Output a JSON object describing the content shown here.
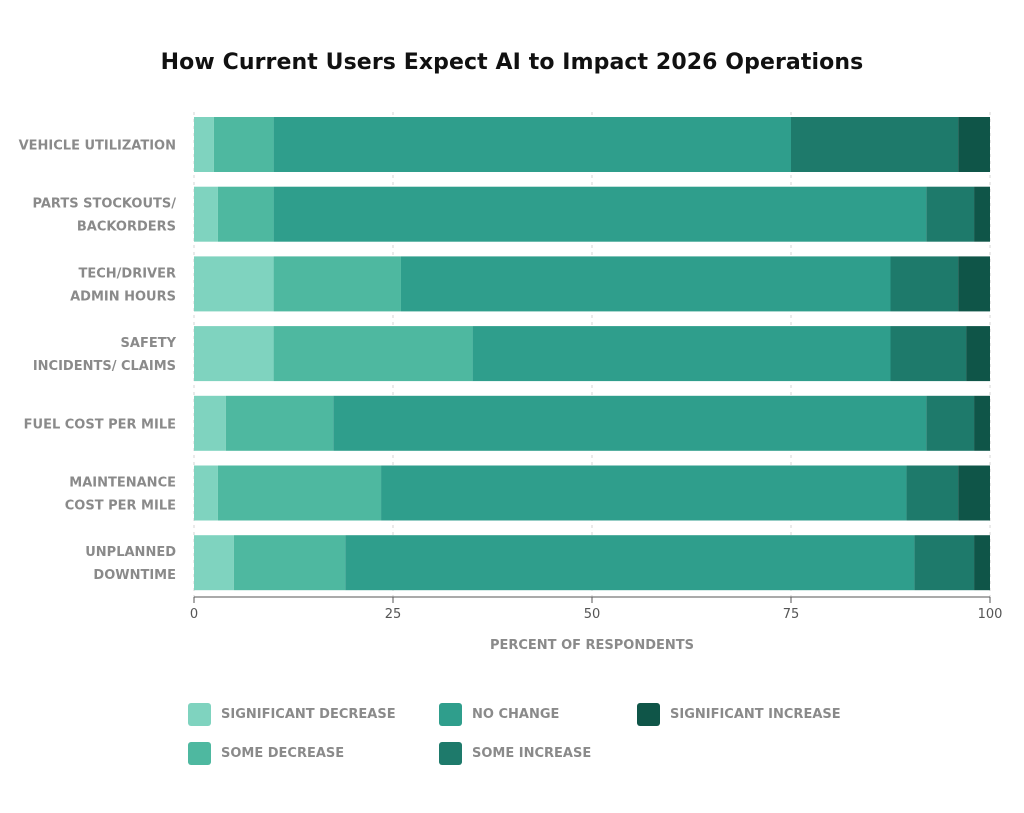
{
  "chart_data": {
    "type": "bar",
    "orientation": "horizontal",
    "stacked": true,
    "title": "How Current Users Expect AI to Impact 2026 Operations",
    "xlabel": "PERCENT OF RESPONDENTS",
    "ylabel": "",
    "xlim": [
      0,
      100
    ],
    "xticks": [
      "0",
      "25",
      "50",
      "75",
      "100"
    ],
    "grid": "vertical dashed",
    "legend_position": "bottom",
    "categories": [
      [
        "VEHICLE UTILIZATION"
      ],
      [
        "PARTS STOCKOUTS/",
        "BACKORDERS"
      ],
      [
        "TECH/DRIVER",
        "ADMIN HOURS"
      ],
      [
        "SAFETY",
        "INCIDENTS/ CLAIMS"
      ],
      [
        "FUEL COST PER MILE"
      ],
      [
        "MAINTENANCE",
        "COST PER MILE"
      ],
      [
        "UNPLANNED",
        "DOWNTIME"
      ]
    ],
    "series": [
      {
        "name": "SIGNIFICANT DECREASE",
        "color": "#7fd3bf",
        "values": [
          2.5,
          3,
          10,
          10,
          4,
          3,
          5
        ]
      },
      {
        "name": "SOME DECREASE",
        "color": "#4eb8a0",
        "values": [
          7.5,
          7,
          16,
          25,
          13.5,
          20.5,
          14
        ]
      },
      {
        "name": "NO CHANGE",
        "color": "#2f9e8c",
        "values": [
          65,
          82,
          61.5,
          52.5,
          74.5,
          66,
          71.5
        ]
      },
      {
        "name": "SOME INCREASE",
        "color": "#1e7a6b",
        "values": [
          21,
          6,
          8.5,
          9.5,
          6,
          6.5,
          7.5
        ]
      },
      {
        "name": "SIGNIFICANT INCREASE",
        "color": "#0f5548",
        "values": [
          4,
          2,
          4,
          3,
          2,
          4,
          2
        ]
      }
    ]
  }
}
